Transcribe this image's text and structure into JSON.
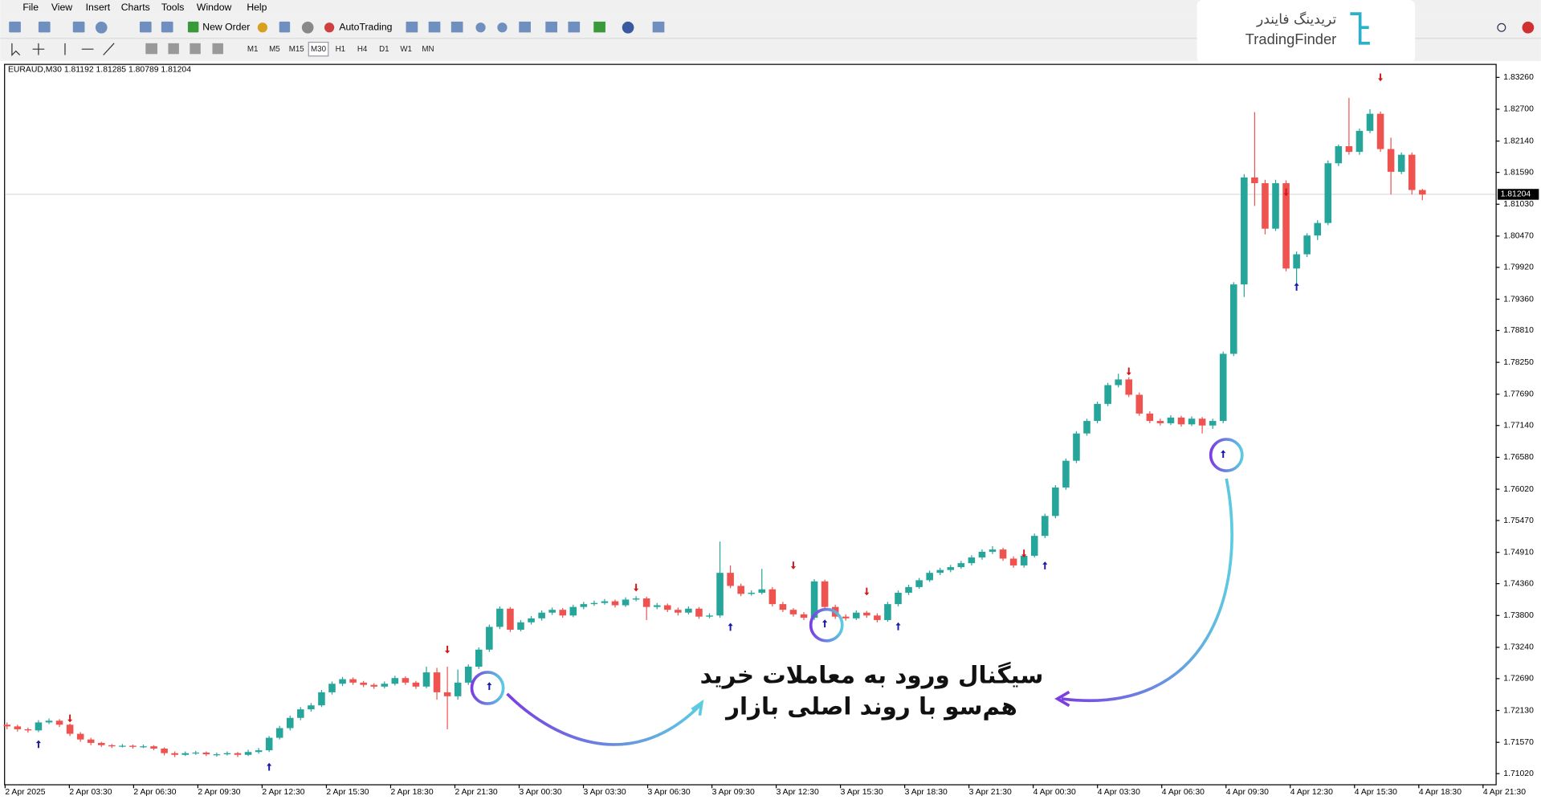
{
  "menu": [
    "File",
    "View",
    "Insert",
    "Charts",
    "Tools",
    "Window",
    "Help"
  ],
  "toolbar": {
    "new_order": "New Order",
    "auto_trading": "AutoTrading",
    "timeframes": [
      "M1",
      "M5",
      "M15",
      "M30",
      "H1",
      "H4",
      "D1",
      "W1",
      "MN"
    ]
  },
  "logo": {
    "fa": "تریدینگ فایندر",
    "en": "TradingFinder"
  },
  "chart": {
    "type": "candlestick",
    "header": "EURAUD,M30  1.81192 1.81285 1.80789 1.81204",
    "ylim": [
      1.7085,
      1.8348
    ],
    "yticks": [
      {
        "value": 1.8326,
        "label": "1.83260"
      },
      {
        "value": 1.827,
        "label": "1.82700"
      },
      {
        "value": 1.8214,
        "label": "1.82140"
      },
      {
        "value": 1.8159,
        "label": "1.81590"
      },
      {
        "value": 1.8103,
        "label": "1.81030"
      },
      {
        "value": 1.8047,
        "label": "1.80470"
      },
      {
        "value": 1.7992,
        "label": "1.79920"
      },
      {
        "value": 1.7936,
        "label": "1.79360"
      },
      {
        "value": 1.7881,
        "label": "1.78810"
      },
      {
        "value": 1.7825,
        "label": "1.78250"
      },
      {
        "value": 1.7769,
        "label": "1.77690"
      },
      {
        "value": 1.7714,
        "label": "1.77140"
      },
      {
        "value": 1.7658,
        "label": "1.76580"
      },
      {
        "value": 1.7602,
        "label": "1.76020"
      },
      {
        "value": 1.7547,
        "label": "1.75470"
      },
      {
        "value": 1.7491,
        "label": "1.74910"
      },
      {
        "value": 1.7436,
        "label": "1.74360"
      },
      {
        "value": 1.738,
        "label": "1.73800"
      },
      {
        "value": 1.7324,
        "label": "1.73240"
      },
      {
        "value": 1.7269,
        "label": "1.72690"
      },
      {
        "value": 1.7213,
        "label": "1.72130"
      },
      {
        "value": 1.7157,
        "label": "1.71570"
      },
      {
        "value": 1.7102,
        "label": "1.71020"
      }
    ],
    "current_price": 1.81204,
    "time_labels": [
      "2 Apr 2025",
      "2 Apr 03:30",
      "2 Apr 06:30",
      "2 Apr 09:30",
      "2 Apr 12:30",
      "2 Apr 15:30",
      "2 Apr 18:30",
      "2 Apr 21:30",
      "3 Apr 00:30",
      "3 Apr 03:30",
      "3 Apr 06:30",
      "3 Apr 09:30",
      "3 Apr 12:30",
      "3 Apr 15:30",
      "3 Apr 18:30",
      "3 Apr 21:30",
      "4 Apr 00:30",
      "4 Apr 03:30",
      "4 Apr 06:30",
      "4 Apr 09:30",
      "4 Apr 12:30",
      "4 Apr 15:30",
      "4 Apr 18:30",
      "4 Apr 21:30"
    ],
    "bull_color": "#26a69a",
    "bear_color": "#ef5350",
    "candles": [
      [
        1.7188,
        1.7192,
        1.718,
        1.7185
      ],
      [
        1.7185,
        1.7188,
        1.7176,
        1.718
      ],
      [
        1.718,
        1.7183,
        1.7174,
        1.7178
      ],
      [
        1.7178,
        1.7196,
        1.7175,
        1.7192
      ],
      [
        1.7192,
        1.7199,
        1.7189,
        1.7195
      ],
      [
        1.7195,
        1.7198,
        1.7184,
        1.7188
      ],
      [
        1.7188,
        1.719,
        1.7168,
        1.7172
      ],
      [
        1.7172,
        1.7175,
        1.7158,
        1.7162
      ],
      [
        1.7162,
        1.7165,
        1.7152,
        1.7156
      ],
      [
        1.7156,
        1.7158,
        1.7149,
        1.7152
      ],
      [
        1.7152,
        1.7154,
        1.7147,
        1.715
      ],
      [
        1.715,
        1.7154,
        1.7148,
        1.7151
      ],
      [
        1.7151,
        1.7153,
        1.7146,
        1.7149
      ],
      [
        1.7149,
        1.7153,
        1.7147,
        1.715
      ],
      [
        1.715,
        1.7152,
        1.7143,
        1.7146
      ],
      [
        1.7146,
        1.7148,
        1.7134,
        1.7138
      ],
      [
        1.7138,
        1.7141,
        1.7131,
        1.7135
      ],
      [
        1.7135,
        1.7141,
        1.7133,
        1.7138
      ],
      [
        1.7138,
        1.7142,
        1.7135,
        1.7139
      ],
      [
        1.7139,
        1.7141,
        1.7133,
        1.7136
      ],
      [
        1.7136,
        1.7139,
        1.7132,
        1.7136
      ],
      [
        1.7136,
        1.7141,
        1.7134,
        1.7138
      ],
      [
        1.7138,
        1.714,
        1.7131,
        1.7135
      ],
      [
        1.7135,
        1.7144,
        1.7133,
        1.714
      ],
      [
        1.714,
        1.7147,
        1.7137,
        1.7143
      ],
      [
        1.7143,
        1.7168,
        1.714,
        1.7165
      ],
      [
        1.7165,
        1.7186,
        1.7162,
        1.7182
      ],
      [
        1.7182,
        1.7204,
        1.7178,
        1.72
      ],
      [
        1.72,
        1.7219,
        1.7196,
        1.7215
      ],
      [
        1.7215,
        1.7226,
        1.7211,
        1.7222
      ],
      [
        1.7222,
        1.7249,
        1.7219,
        1.7245
      ],
      [
        1.7245,
        1.7264,
        1.7241,
        1.726
      ],
      [
        1.726,
        1.7272,
        1.7256,
        1.7268
      ],
      [
        1.7268,
        1.7271,
        1.7258,
        1.7262
      ],
      [
        1.7262,
        1.7265,
        1.7254,
        1.7258
      ],
      [
        1.7258,
        1.7261,
        1.7251,
        1.7255
      ],
      [
        1.7255,
        1.7264,
        1.7252,
        1.726
      ],
      [
        1.726,
        1.7274,
        1.7257,
        1.727
      ],
      [
        1.727,
        1.7273,
        1.7258,
        1.7262
      ],
      [
        1.7262,
        1.7265,
        1.7251,
        1.7255
      ],
      [
        1.7255,
        1.729,
        1.7252,
        1.728
      ],
      [
        1.728,
        1.7288,
        1.7232,
        1.7245
      ],
      [
        1.7245,
        1.729,
        1.718,
        1.7238
      ],
      [
        1.7238,
        1.7285,
        1.7232,
        1.7262
      ],
      [
        1.7262,
        1.7294,
        1.7258,
        1.729
      ],
      [
        1.729,
        1.7324,
        1.7286,
        1.732
      ],
      [
        1.732,
        1.7364,
        1.7316,
        1.736
      ],
      [
        1.736,
        1.7396,
        1.7356,
        1.7392
      ],
      [
        1.7392,
        1.7395,
        1.7351,
        1.7355
      ],
      [
        1.7355,
        1.7372,
        1.7352,
        1.7368
      ],
      [
        1.7368,
        1.7379,
        1.7364,
        1.7375
      ],
      [
        1.7375,
        1.7389,
        1.7371,
        1.7385
      ],
      [
        1.7385,
        1.7394,
        1.7381,
        1.739
      ],
      [
        1.739,
        1.7393,
        1.7376,
        1.738
      ],
      [
        1.738,
        1.7399,
        1.7377,
        1.7395
      ],
      [
        1.7395,
        1.7404,
        1.7391,
        1.74
      ],
      [
        1.74,
        1.7406,
        1.7397,
        1.7402
      ],
      [
        1.7402,
        1.7409,
        1.7399,
        1.7405
      ],
      [
        1.7405,
        1.7408,
        1.7394,
        1.7398
      ],
      [
        1.7398,
        1.7412,
        1.7395,
        1.7408
      ],
      [
        1.7408,
        1.7414,
        1.7405,
        1.741
      ],
      [
        1.741,
        1.7413,
        1.7372,
        1.7395
      ],
      [
        1.7395,
        1.7402,
        1.7391,
        1.7398
      ],
      [
        1.7398,
        1.7401,
        1.7386,
        1.739
      ],
      [
        1.739,
        1.7394,
        1.738,
        1.7385
      ],
      [
        1.7385,
        1.7396,
        1.7382,
        1.7392
      ],
      [
        1.7392,
        1.7395,
        1.7374,
        1.7378
      ],
      [
        1.7378,
        1.7384,
        1.7375,
        1.738
      ],
      [
        1.738,
        1.751,
        1.7376,
        1.7455
      ],
      [
        1.7455,
        1.7468,
        1.7428,
        1.7432
      ],
      [
        1.7432,
        1.7436,
        1.7414,
        1.7418
      ],
      [
        1.7418,
        1.7424,
        1.7415,
        1.742
      ],
      [
        1.742,
        1.7462,
        1.7417,
        1.7426
      ],
      [
        1.7426,
        1.743,
        1.7396,
        1.74
      ],
      [
        1.74,
        1.7404,
        1.7386,
        1.739
      ],
      [
        1.739,
        1.7393,
        1.7378,
        1.7382
      ],
      [
        1.7382,
        1.7386,
        1.7372,
        1.7376
      ],
      [
        1.7376,
        1.7444,
        1.7372,
        1.744
      ],
      [
        1.744,
        1.7443,
        1.7391,
        1.7395
      ],
      [
        1.7395,
        1.7399,
        1.7374,
        1.7378
      ],
      [
        1.7378,
        1.7382,
        1.7371,
        1.7375
      ],
      [
        1.7375,
        1.7389,
        1.7372,
        1.7385
      ],
      [
        1.7385,
        1.7388,
        1.7376,
        1.738
      ],
      [
        1.738,
        1.7384,
        1.7368,
        1.7372
      ],
      [
        1.7372,
        1.7404,
        1.7369,
        1.74
      ],
      [
        1.74,
        1.7424,
        1.7396,
        1.742
      ],
      [
        1.742,
        1.7434,
        1.7416,
        1.743
      ],
      [
        1.743,
        1.7446,
        1.7427,
        1.7442
      ],
      [
        1.7442,
        1.7459,
        1.7439,
        1.7455
      ],
      [
        1.7455,
        1.7464,
        1.7451,
        1.746
      ],
      [
        1.746,
        1.7469,
        1.7456,
        1.7465
      ],
      [
        1.7465,
        1.7476,
        1.7462,
        1.7472
      ],
      [
        1.7472,
        1.7486,
        1.7468,
        1.7482
      ],
      [
        1.7482,
        1.7496,
        1.7478,
        1.7492
      ],
      [
        1.7492,
        1.7502,
        1.7488,
        1.7496
      ],
      [
        1.7496,
        1.7499,
        1.7476,
        1.748
      ],
      [
        1.748,
        1.7484,
        1.7464,
        1.7468
      ],
      [
        1.7468,
        1.7489,
        1.7464,
        1.7485
      ],
      [
        1.7485,
        1.7524,
        1.7482,
        1.752
      ],
      [
        1.752,
        1.7559,
        1.7516,
        1.7555
      ],
      [
        1.7555,
        1.7609,
        1.7551,
        1.7605
      ],
      [
        1.7605,
        1.7656,
        1.7601,
        1.7652
      ],
      [
        1.7652,
        1.7704,
        1.7648,
        1.77
      ],
      [
        1.77,
        1.7726,
        1.7696,
        1.7722
      ],
      [
        1.7722,
        1.7756,
        1.7718,
        1.7752
      ],
      [
        1.7752,
        1.7789,
        1.7748,
        1.7785
      ],
      [
        1.7785,
        1.7805,
        1.7781,
        1.7795
      ],
      [
        1.7795,
        1.7799,
        1.7764,
        1.7768
      ],
      [
        1.7768,
        1.7772,
        1.7731,
        1.7735
      ],
      [
        1.7735,
        1.7739,
        1.7718,
        1.7722
      ],
      [
        1.7722,
        1.7726,
        1.7714,
        1.7718
      ],
      [
        1.7718,
        1.7732,
        1.7715,
        1.7728
      ],
      [
        1.7728,
        1.7731,
        1.7712,
        1.7716
      ],
      [
        1.7716,
        1.773,
        1.7713,
        1.7726
      ],
      [
        1.7726,
        1.7729,
        1.77,
        1.7714
      ],
      [
        1.7714,
        1.7726,
        1.7708,
        1.7722
      ],
      [
        1.7722,
        1.7844,
        1.7718,
        1.784
      ],
      [
        1.784,
        1.7966,
        1.7836,
        1.7962
      ],
      [
        1.7962,
        1.8156,
        1.794,
        1.815
      ],
      [
        1.815,
        1.8265,
        1.81,
        1.814
      ],
      [
        1.814,
        1.8146,
        1.805,
        1.806
      ],
      [
        1.806,
        1.8146,
        1.8056,
        1.814
      ],
      [
        1.814,
        1.8145,
        1.7985,
        1.799
      ],
      [
        1.799,
        1.802,
        1.796,
        1.8015
      ],
      [
        1.8015,
        1.8052,
        1.801,
        1.8048
      ],
      [
        1.8048,
        1.8075,
        1.804,
        1.807
      ],
      [
        1.807,
        1.818,
        1.8066,
        1.8175
      ],
      [
        1.8175,
        1.8208,
        1.817,
        1.8205
      ],
      [
        1.8205,
        1.829,
        1.819,
        1.8195
      ],
      [
        1.8195,
        1.8236,
        1.819,
        1.8232
      ],
      [
        1.8232,
        1.827,
        1.8228,
        1.8262
      ],
      [
        1.8262,
        1.8266,
        1.8195,
        1.82
      ],
      [
        1.82,
        1.822,
        1.812,
        1.816
      ],
      [
        1.816,
        1.8194,
        1.8156,
        1.819
      ],
      [
        1.819,
        1.8194,
        1.812,
        1.8128
      ],
      [
        1.8128,
        1.813,
        1.811,
        1.812
      ]
    ],
    "buy_signals": [
      {
        "candle": 3,
        "price": 1.7154
      },
      {
        "candle": 25,
        "price": 1.7114
      },
      {
        "candle": 46,
        "price": 1.7256
      },
      {
        "candle": 69,
        "price": 1.736
      },
      {
        "candle": 78,
        "price": 1.7366
      },
      {
        "candle": 85,
        "price": 1.7361
      },
      {
        "candle": 99,
        "price": 1.7468
      },
      {
        "candle": 116,
        "price": 1.7664
      },
      {
        "candle": 123,
        "price": 1.7958
      }
    ],
    "sell_signals": [
      {
        "candle": 6,
        "price": 1.7199
      },
      {
        "candle": 42,
        "price": 1.732
      },
      {
        "candle": 60,
        "price": 1.7429
      },
      {
        "candle": 75,
        "price": 1.7468
      },
      {
        "candle": 82,
        "price": 1.7422
      },
      {
        "candle": 97,
        "price": 1.7489
      },
      {
        "candle": 107,
        "price": 1.7809
      },
      {
        "candle": 122,
        "price": 1.8124
      },
      {
        "candle": 131,
        "price": 1.8326
      }
    ],
    "buy_color": "#1a1aa8",
    "sell_color": "#d01818",
    "annotation": [
      "سیگنال ورود به معاملات خرید",
      "هم‌سو با روند اصلی بازار"
    ]
  }
}
